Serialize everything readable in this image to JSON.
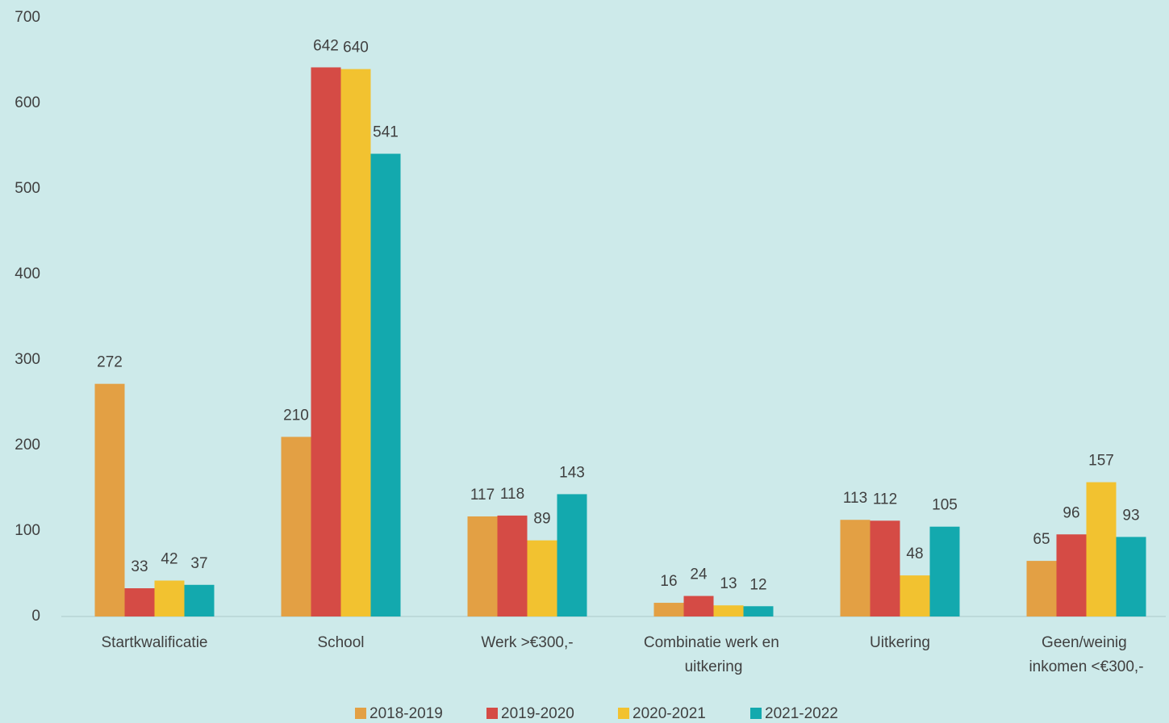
{
  "chart_data": {
    "type": "bar",
    "categories": [
      "Startkwalificatie",
      "School",
      "Werk >€300,-",
      "Combinatie werk en uitkering",
      "Uitkering",
      "Geen/weinig inkomen <€300,-"
    ],
    "series": [
      {
        "name": "2018-2019",
        "color": "#e3a044",
        "values": [
          272,
          210,
          117,
          16,
          113,
          65
        ]
      },
      {
        "name": "2019-2020",
        "color": "#d54b45",
        "values": [
          33,
          642,
          118,
          24,
          112,
          96
        ]
      },
      {
        "name": "2020-2021",
        "color": "#f2c230",
        "values": [
          42,
          640,
          89,
          13,
          48,
          157
        ]
      },
      {
        "name": "2021-2022",
        "color": "#13a9ae",
        "values": [
          37,
          541,
          143,
          12,
          105,
          93
        ]
      }
    ],
    "ylim": [
      0,
      700
    ],
    "yticks": [
      0,
      100,
      200,
      300,
      400,
      500,
      600,
      700
    ],
    "grid": false,
    "legend": "bottom"
  }
}
